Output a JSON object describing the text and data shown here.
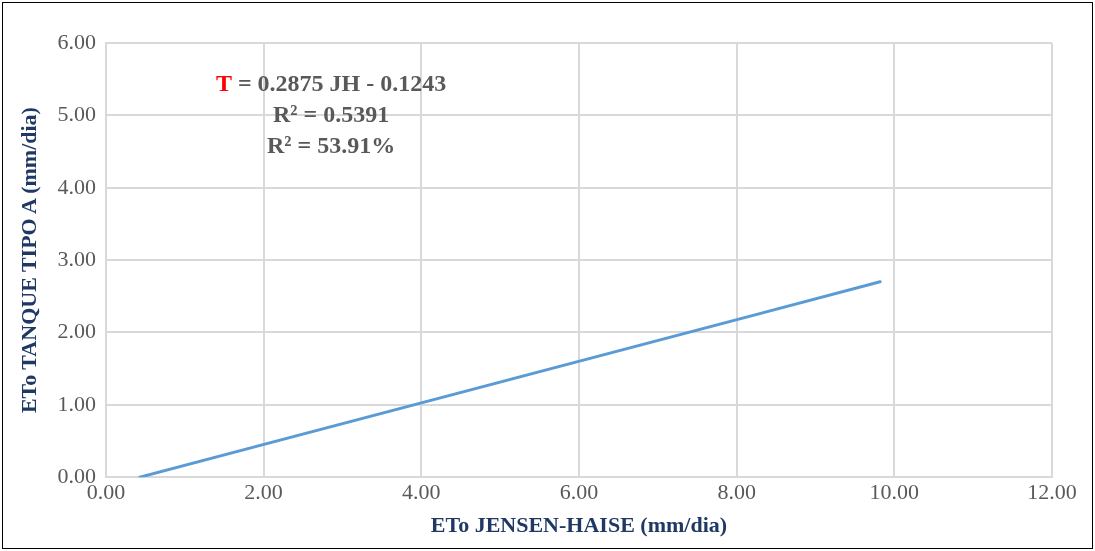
{
  "chart_data": {
    "type": "line",
    "xlabel": "ETo JENSEN-HAISE (mm/dia)",
    "ylabel": "ETo TANQUE TIPO A (mm/dia)",
    "x": [
      0.43,
      9.82
    ],
    "series": [
      {
        "color": "#5b9bd5",
        "values": [
          0,
          2.7
        ]
      }
    ],
    "xlim": [
      0,
      12
    ],
    "xticks": [
      {
        "value": 0,
        "label": "0.00"
      },
      {
        "value": 2,
        "label": "2.00"
      },
      {
        "value": 4,
        "label": "4.00"
      },
      {
        "value": 6,
        "label": "6.00"
      },
      {
        "value": 8,
        "label": "8.00"
      },
      {
        "value": 10,
        "label": "10.00"
      },
      {
        "value": 12,
        "label": "12.00"
      }
    ],
    "ylim": [
      0,
      6
    ],
    "yticks": [
      {
        "value": 0,
        "label": "0.00"
      },
      {
        "value": 1,
        "label": "1.00"
      },
      {
        "value": 2,
        "label": "2.00"
      },
      {
        "value": 3,
        "label": "3.00"
      },
      {
        "value": 4,
        "label": "4.00"
      },
      {
        "value": 5,
        "label": "5.00"
      },
      {
        "value": 6,
        "label": "6.00"
      }
    ],
    "grid": true,
    "marker": "none",
    "annotations": [
      "T = 0.2875 JH - 0.1243",
      "R² = 0.5391",
      "R² = 53.91%"
    ]
  }
}
